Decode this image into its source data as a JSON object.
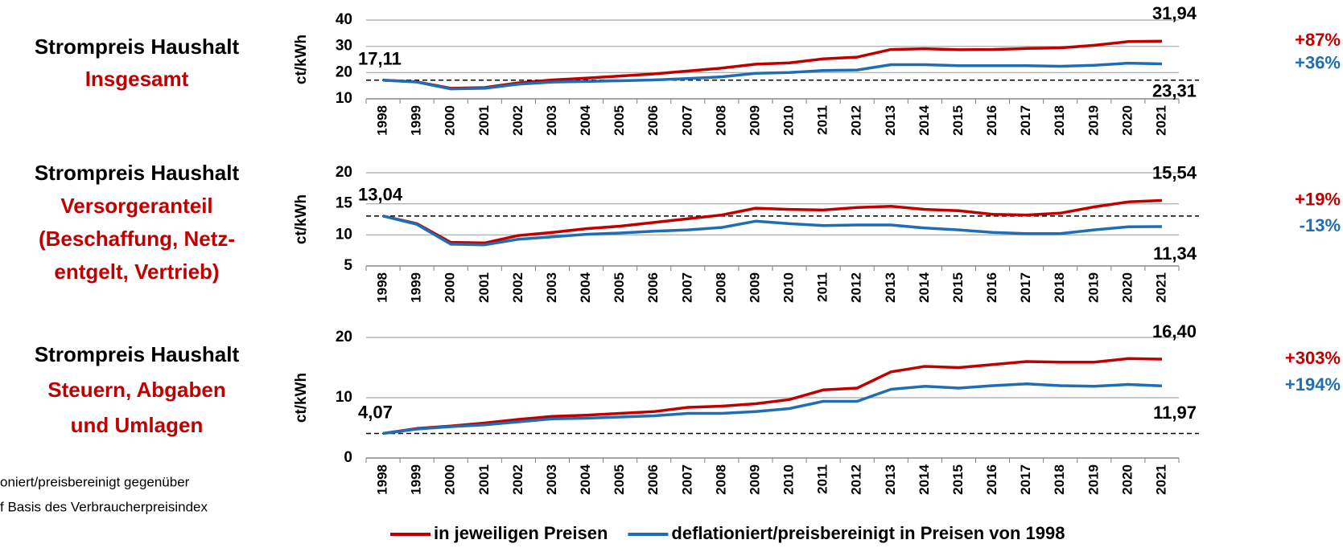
{
  "chart_data": [
    {
      "type": "line",
      "title": [
        "Strompreis Haushalt",
        "Insgesamt"
      ],
      "ylabel": "ct/kWh",
      "categories": [
        "1998",
        "1999",
        "2000",
        "2001",
        "2002",
        "2003",
        "2004",
        "2005",
        "2006",
        "2007",
        "2008",
        "2009",
        "2010",
        "2011",
        "2012",
        "2013",
        "2014",
        "2015",
        "2016",
        "2017",
        "2018",
        "2019",
        "2020",
        "2021"
      ],
      "ylim": [
        10,
        40
      ],
      "yticks": [
        10,
        20,
        30,
        40
      ],
      "grid": true,
      "series": [
        {
          "color": "#c00000",
          "change_label": "+87%",
          "values": [
            17.11,
            16.5,
            14.0,
            14.3,
            16.1,
            17.2,
            17.9,
            18.7,
            19.5,
            20.6,
            21.7,
            23.2,
            23.7,
            25.2,
            25.9,
            28.8,
            29.1,
            28.7,
            28.8,
            29.2,
            29.4,
            30.4,
            31.8,
            31.94
          ],
          "value_labels": [
            "17,11",
            null,
            null,
            null,
            null,
            null,
            null,
            null,
            null,
            null,
            null,
            null,
            null,
            null,
            null,
            null,
            null,
            null,
            null,
            null,
            null,
            null,
            null,
            "31,94"
          ]
        },
        {
          "color": "#1f6db3",
          "change_label": "+36%",
          "values": [
            17.11,
            16.4,
            13.8,
            14.0,
            15.6,
            16.4,
            16.6,
            16.9,
            17.2,
            17.7,
            18.4,
            19.7,
            20.0,
            20.8,
            21.0,
            23.0,
            23.0,
            22.6,
            22.6,
            22.6,
            22.4,
            22.8,
            23.6,
            23.31
          ],
          "value_labels": [
            null,
            null,
            null,
            null,
            null,
            null,
            null,
            null,
            null,
            null,
            null,
            null,
            null,
            null,
            null,
            null,
            null,
            null,
            null,
            null,
            null,
            null,
            null,
            "23,31"
          ]
        }
      ]
    },
    {
      "type": "line",
      "title": [
        "Strompreis Haushalt",
        "Versorgeranteil",
        "(Beschaffung, Netz-",
        "entgelt, Vertrieb)"
      ],
      "ylabel": "ct/kWh",
      "categories": [
        "1998",
        "1999",
        "2000",
        "2001",
        "2002",
        "2003",
        "2004",
        "2005",
        "2006",
        "2007",
        "2008",
        "2009",
        "2010",
        "2011",
        "2012",
        "2013",
        "2014",
        "2015",
        "2016",
        "2017",
        "2018",
        "2019",
        "2020",
        "2021"
      ],
      "ylim": [
        5,
        20
      ],
      "yticks": [
        5,
        10,
        15,
        20
      ],
      "grid": true,
      "series": [
        {
          "color": "#c00000",
          "change_label": "+19%",
          "values": [
            13.04,
            11.8,
            8.8,
            8.7,
            9.9,
            10.4,
            11.0,
            11.4,
            12.0,
            12.6,
            13.2,
            14.3,
            14.1,
            14.0,
            14.4,
            14.6,
            14.1,
            13.9,
            13.3,
            13.2,
            13.5,
            14.5,
            15.3,
            15.54
          ],
          "value_labels": [
            "13,04",
            null,
            null,
            null,
            null,
            null,
            null,
            null,
            null,
            null,
            null,
            null,
            null,
            null,
            null,
            null,
            null,
            null,
            null,
            null,
            null,
            null,
            null,
            "15,54"
          ]
        },
        {
          "color": "#1f6db3",
          "change_label": "-13%",
          "values": [
            13.04,
            11.7,
            8.5,
            8.4,
            9.3,
            9.7,
            10.1,
            10.3,
            10.6,
            10.8,
            11.2,
            12.2,
            11.8,
            11.5,
            11.6,
            11.6,
            11.1,
            10.8,
            10.4,
            10.2,
            10.2,
            10.8,
            11.3,
            11.34
          ],
          "value_labels": [
            null,
            null,
            null,
            null,
            null,
            null,
            null,
            null,
            null,
            null,
            null,
            null,
            null,
            null,
            null,
            null,
            null,
            null,
            null,
            null,
            null,
            null,
            null,
            "11,34"
          ]
        }
      ]
    },
    {
      "type": "line",
      "title": [
        "Strompreis Haushalt",
        "Steuern, Abgaben",
        "und Umlagen"
      ],
      "ylabel": "ct/kWh",
      "categories": [
        "1998",
        "1999",
        "2000",
        "2001",
        "2002",
        "2003",
        "2004",
        "2005",
        "2006",
        "2007",
        "2008",
        "2009",
        "2010",
        "2011",
        "2012",
        "2013",
        "2014",
        "2015",
        "2016",
        "2017",
        "2018",
        "2019",
        "2020",
        "2021"
      ],
      "ylim": [
        0,
        20
      ],
      "yticks": [
        0,
        10,
        20
      ],
      "grid": true,
      "series": [
        {
          "color": "#c00000",
          "change_label": "+303%",
          "values": [
            4.07,
            4.9,
            5.3,
            5.8,
            6.4,
            6.9,
            7.1,
            7.4,
            7.7,
            8.4,
            8.6,
            9.0,
            9.7,
            11.3,
            11.6,
            14.3,
            15.2,
            15.0,
            15.5,
            16.0,
            15.9,
            15.9,
            16.5,
            16.4
          ],
          "value_labels": [
            "4,07",
            null,
            null,
            null,
            null,
            null,
            null,
            null,
            null,
            null,
            null,
            null,
            null,
            null,
            null,
            null,
            null,
            null,
            null,
            null,
            null,
            null,
            null,
            "16,40"
          ]
        },
        {
          "color": "#1f6db3",
          "change_label": "+194%",
          "values": [
            4.07,
            4.8,
            5.2,
            5.5,
            6.0,
            6.5,
            6.6,
            6.8,
            7.0,
            7.4,
            7.4,
            7.7,
            8.2,
            9.4,
            9.4,
            11.4,
            11.9,
            11.6,
            12.0,
            12.3,
            12.0,
            11.9,
            12.2,
            11.97
          ],
          "value_labels": [
            null,
            null,
            null,
            null,
            null,
            null,
            null,
            null,
            null,
            null,
            null,
            null,
            null,
            null,
            null,
            null,
            null,
            null,
            null,
            null,
            null,
            null,
            null,
            "11,97"
          ]
        }
      ]
    }
  ],
  "legend": [
    {
      "name": "in jeweiligen Preisen",
      "color": "#c00000"
    },
    {
      "name": "deflationiert/preisbereinigt in Preisen von 1998",
      "color": "#1f6db3"
    }
  ],
  "footnote": [
    "oniert/preisbereinigt gegenüber",
    "f Basis des Verbraucherpreisindex"
  ]
}
